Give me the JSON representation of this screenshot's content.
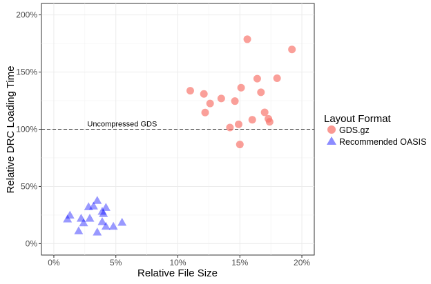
{
  "chart_data": {
    "type": "scatter",
    "title": "",
    "xlabel": "Relative File Size",
    "ylabel": "Relative DRC Loading Time",
    "xlim": [
      -1,
      21
    ],
    "ylim": [
      -10,
      210
    ],
    "xticks": [
      0,
      5,
      10,
      15,
      20
    ],
    "xtick_labels": [
      "0%",
      "5%",
      "10%",
      "15%",
      "20%"
    ],
    "yticks": [
      0,
      50,
      100,
      150,
      200
    ],
    "ytick_labels": [
      "0%",
      "50%",
      "100%",
      "150%",
      "200%"
    ],
    "grid": true,
    "reference_line": {
      "y": 100,
      "label": "Uncompressed GDS",
      "style": "dashed"
    },
    "legend": {
      "title": "Layout Format",
      "placement": "right"
    },
    "series": [
      {
        "name": "GDS.gz",
        "marker": "circle",
        "color": "#F8766D",
        "points": [
          [
            15.6,
            178.7
          ],
          [
            19.2,
            169.8
          ],
          [
            16.4,
            144.2
          ],
          [
            18.0,
            144.6
          ],
          [
            11.0,
            133.7
          ],
          [
            12.1,
            130.9
          ],
          [
            15.1,
            136.3
          ],
          [
            16.7,
            132.3
          ],
          [
            12.6,
            122.5
          ],
          [
            13.5,
            126.9
          ],
          [
            14.6,
            124.6
          ],
          [
            12.2,
            114.6
          ],
          [
            17.0,
            114.8
          ],
          [
            16.0,
            108.3
          ],
          [
            14.9,
            104.3
          ],
          [
            14.2,
            101.5
          ],
          [
            17.3,
            109.1
          ],
          [
            17.4,
            106.5
          ],
          [
            15.0,
            86.7
          ]
        ]
      },
      {
        "name": "Recommended OASIS",
        "marker": "triangle",
        "color": "#0000FF",
        "points": [
          [
            3.5,
            37.5
          ],
          [
            2.8,
            32.0
          ],
          [
            3.2,
            32.6
          ],
          [
            4.2,
            31.4
          ],
          [
            3.9,
            28.0
          ],
          [
            4.0,
            26.0
          ],
          [
            1.3,
            24.6
          ],
          [
            1.1,
            21.3
          ],
          [
            2.2,
            21.9
          ],
          [
            2.9,
            21.9
          ],
          [
            2.4,
            17.9
          ],
          [
            3.9,
            18.9
          ],
          [
            5.5,
            18.3
          ],
          [
            4.8,
            14.9
          ],
          [
            4.2,
            14.9
          ],
          [
            2.0,
            10.9
          ],
          [
            3.5,
            9.8
          ]
        ]
      }
    ]
  }
}
